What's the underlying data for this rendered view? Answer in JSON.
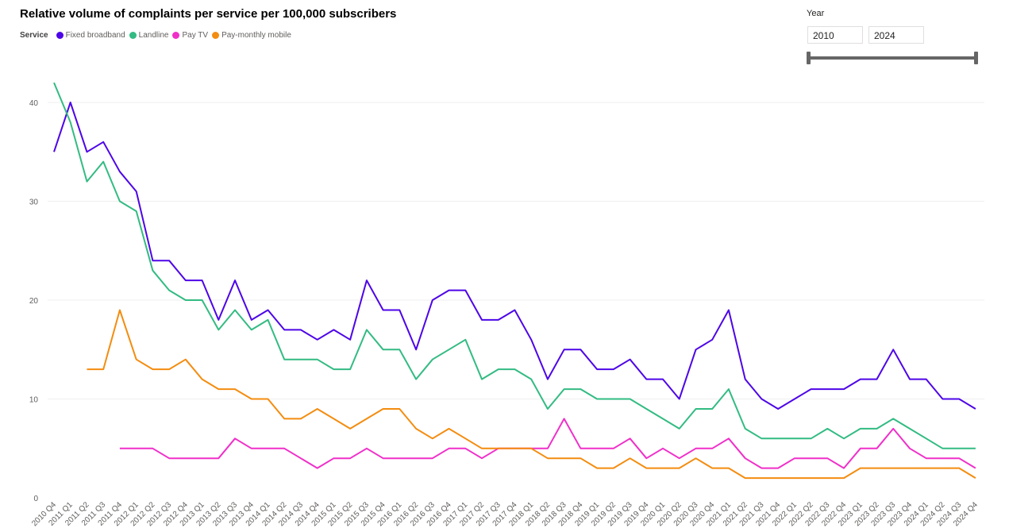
{
  "chart_data": {
    "type": "line",
    "title": "Relative volume of complaints per service per 100,000 subscribers",
    "legend_title": "Service",
    "legend_position": "top-left",
    "grid": true,
    "ylim": [
      0,
      42
    ],
    "yticks": [
      "0",
      "10",
      "20",
      "30",
      "40"
    ],
    "ytick_values": [
      0,
      10,
      20,
      30,
      40
    ],
    "categories": [
      "2010 Q4",
      "2011 Q1",
      "2011 Q2",
      "2011 Q3",
      "2011 Q4",
      "2012 Q1",
      "2012 Q2",
      "2012 Q3",
      "2012 Q4",
      "2013 Q1",
      "2013 Q2",
      "2013 Q3",
      "2013 Q4",
      "2014 Q1",
      "2014 Q2",
      "2014 Q3",
      "2014 Q4",
      "2015 Q1",
      "2015 Q2",
      "2015 Q3",
      "2015 Q4",
      "2016 Q1",
      "2016 Q2",
      "2016 Q3",
      "2016 Q4",
      "2017 Q1",
      "2017 Q2",
      "2017 Q3",
      "2017 Q4",
      "2018 Q1",
      "2018 Q2",
      "2018 Q3",
      "2018 Q4",
      "2019 Q1",
      "2019 Q2",
      "2019 Q3",
      "2019 Q4",
      "2020 Q1",
      "2020 Q2",
      "2020 Q3",
      "2020 Q4",
      "2021 Q1",
      "2021 Q2",
      "2021 Q3",
      "2021 Q4",
      "2022 Q1",
      "2022 Q2",
      "2022 Q3",
      "2022 Q4",
      "2023 Q1",
      "2023 Q2",
      "2023 Q3",
      "2023 Q4",
      "2024 Q1",
      "2024 Q2",
      "2024 Q3",
      "2024 Q4"
    ],
    "series": [
      {
        "name": "Fixed broadband",
        "color": "#4d05e8",
        "values": [
          35,
          40,
          35,
          36,
          33,
          31,
          24,
          24,
          22,
          22,
          18,
          22,
          18,
          19,
          17,
          17,
          16,
          17,
          16,
          22,
          19,
          19,
          15,
          20,
          21,
          21,
          18,
          18,
          19,
          16,
          12,
          15,
          15,
          13,
          13,
          14,
          12,
          12,
          10,
          15,
          16,
          19,
          12,
          10,
          9,
          10,
          11,
          11,
          11,
          12,
          12,
          15,
          12,
          12,
          10,
          10,
          9
        ]
      },
      {
        "name": "Landline",
        "color": "#32bb82",
        "values": [
          42,
          38,
          32,
          34,
          30,
          29,
          23,
          21,
          20,
          20,
          17,
          19,
          17,
          18,
          14,
          14,
          14,
          13,
          13,
          17,
          15,
          15,
          12,
          14,
          15,
          16,
          12,
          13,
          13,
          12,
          9,
          11,
          11,
          10,
          10,
          10,
          9,
          8,
          7,
          9,
          9,
          11,
          7,
          6,
          6,
          6,
          6,
          7,
          6,
          7,
          7,
          8,
          7,
          6,
          5,
          5,
          5
        ]
      },
      {
        "name": "Pay TV",
        "color": "#f02fc9",
        "values": [
          null,
          null,
          null,
          null,
          5,
          5,
          5,
          4,
          4,
          4,
          4,
          6,
          5,
          5,
          5,
          4,
          3,
          4,
          4,
          5,
          4,
          4,
          4,
          4,
          5,
          5,
          4,
          5,
          5,
          5,
          5,
          8,
          5,
          5,
          5,
          6,
          4,
          5,
          4,
          5,
          5,
          6,
          4,
          3,
          3,
          4,
          4,
          4,
          3,
          5,
          5,
          7,
          5,
          4,
          4,
          4,
          3
        ]
      },
      {
        "name": "Pay-monthly mobile",
        "color": "#f48c0f",
        "values": [
          null,
          null,
          13,
          13,
          19,
          14,
          13,
          13,
          14,
          12,
          11,
          11,
          10,
          10,
          8,
          8,
          9,
          8,
          7,
          8,
          9,
          9,
          7,
          6,
          7,
          6,
          5,
          5,
          5,
          5,
          4,
          4,
          4,
          3,
          3,
          4,
          3,
          3,
          3,
          4,
          3,
          3,
          2,
          2,
          2,
          2,
          2,
          2,
          2,
          3,
          3,
          3,
          3,
          3,
          3,
          3,
          2
        ]
      }
    ]
  },
  "slicer": {
    "label": "Year",
    "start": "2010",
    "end": "2024"
  }
}
